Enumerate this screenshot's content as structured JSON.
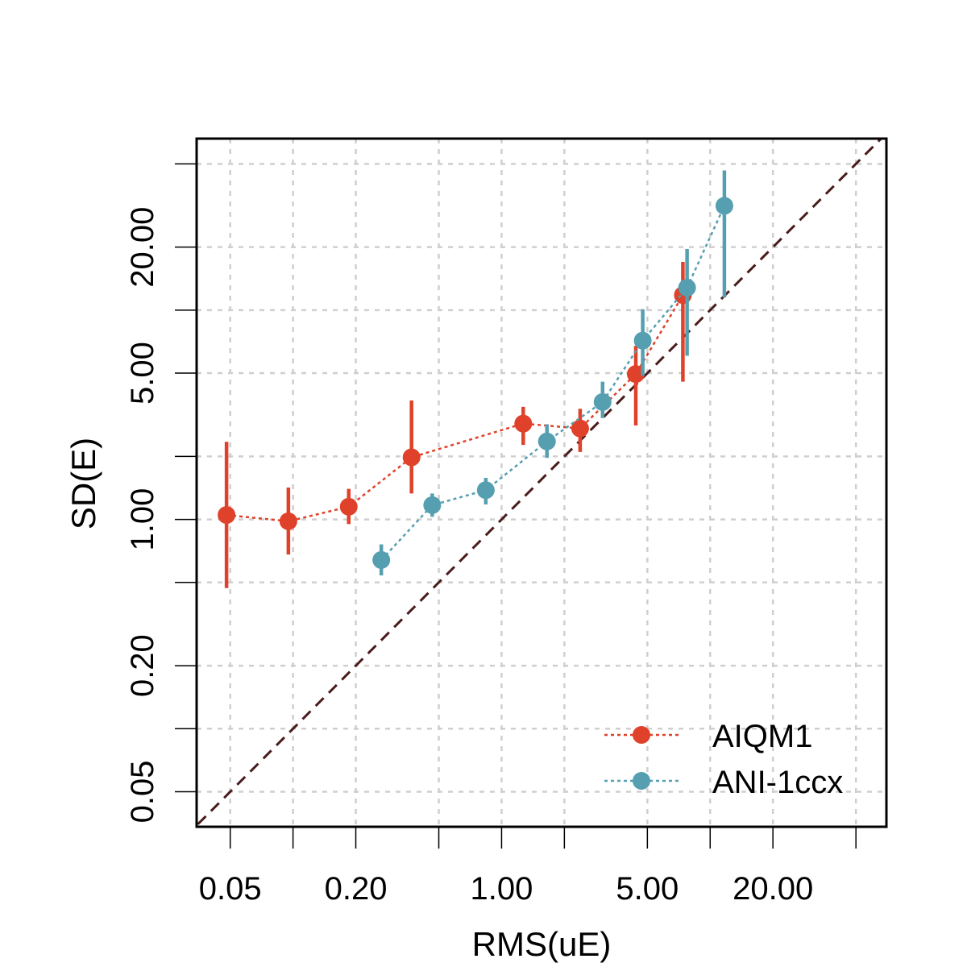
{
  "chart_data": {
    "type": "scatter",
    "title": "",
    "xlabel": "RMS(uE)",
    "ylabel": "SD(E)",
    "xscale": "log10",
    "yscale": "log10",
    "xlim": [
      0.0345,
      70.0
    ],
    "ylim": [
      0.034,
      66.0
    ],
    "grid": true,
    "x_ticks": [
      0.05,
      0.1,
      0.2,
      0.5,
      1.0,
      2.0,
      5.0,
      10.0,
      20.0,
      50.0
    ],
    "x_tick_labels": [
      {
        "value": 0.05,
        "label": "0.05"
      },
      {
        "value": 0.2,
        "label": "0.20"
      },
      {
        "value": 1.0,
        "label": "1.00"
      },
      {
        "value": 5.0,
        "label": "5.00"
      },
      {
        "value": 20.0,
        "label": "20.00"
      }
    ],
    "y_ticks": [
      0.05,
      0.1,
      0.2,
      0.5,
      1.0,
      2.0,
      5.0,
      10.0,
      20.0,
      50.0
    ],
    "y_tick_labels": [
      {
        "value": 0.05,
        "label": "0.05"
      },
      {
        "value": 0.2,
        "label": "0.20"
      },
      {
        "value": 1.0,
        "label": "1.00"
      },
      {
        "value": 5.0,
        "label": "5.00"
      },
      {
        "value": 20.0,
        "label": "20.00"
      }
    ],
    "reference_line": {
      "name": "identity",
      "slope": 1,
      "color": "#4a1c1c"
    },
    "legend_position": "bottom-right",
    "series": [
      {
        "name": "AIQM1",
        "color": "#e0412a",
        "points": [
          {
            "x": 0.048,
            "y": 1.05,
            "lo": 0.47,
            "hi": 2.35
          },
          {
            "x": 0.095,
            "y": 0.98,
            "lo": 0.68,
            "hi": 1.42
          },
          {
            "x": 0.185,
            "y": 1.15,
            "lo": 0.95,
            "hi": 1.4
          },
          {
            "x": 0.37,
            "y": 1.98,
            "lo": 1.33,
            "hi": 3.7
          },
          {
            "x": 1.27,
            "y": 2.87,
            "lo": 2.27,
            "hi": 3.45
          },
          {
            "x": 2.38,
            "y": 2.72,
            "lo": 2.1,
            "hi": 3.38
          },
          {
            "x": 4.4,
            "y": 4.95,
            "lo": 2.81,
            "hi": 6.75
          },
          {
            "x": 7.4,
            "y": 11.8,
            "lo": 4.55,
            "hi": 17.0
          }
        ]
      },
      {
        "name": "ANI-1ccx",
        "color": "#559fb1",
        "points": [
          {
            "x": 0.265,
            "y": 0.64,
            "lo": 0.54,
            "hi": 0.76
          },
          {
            "x": 0.465,
            "y": 1.17,
            "lo": 1.03,
            "hi": 1.33
          },
          {
            "x": 0.84,
            "y": 1.38,
            "lo": 1.18,
            "hi": 1.58
          },
          {
            "x": 1.65,
            "y": 2.36,
            "lo": 1.97,
            "hi": 2.85
          },
          {
            "x": 3.05,
            "y": 3.64,
            "lo": 3.05,
            "hi": 4.55
          },
          {
            "x": 4.75,
            "y": 7.15,
            "lo": 4.86,
            "hi": 10.1
          },
          {
            "x": 7.75,
            "y": 12.8,
            "lo": 6.05,
            "hi": 19.6
          },
          {
            "x": 11.7,
            "y": 31.5,
            "lo": 11.5,
            "hi": 46.5
          }
        ]
      }
    ]
  }
}
